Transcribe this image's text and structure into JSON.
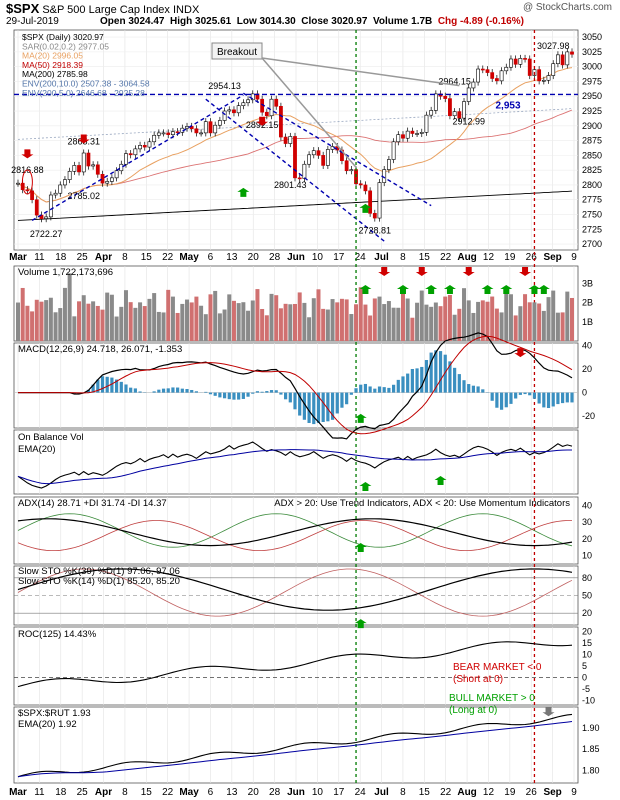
{
  "header": {
    "symbol": "$SPX",
    "name": "S&P 500 Large Cap Index",
    "exchange": "INDX",
    "date": "29-Jul-2019",
    "open": "Open 3024.47",
    "high": "High 3025.61",
    "low": "Low 3014.30",
    "close": "Close 3020.97",
    "volume": "Volume 1.7B",
    "chg": "Chg -4.89 (-0.16%)",
    "watermark": "@ StockCharts.com"
  },
  "colors": {
    "up": "#00a000",
    "down": "#d00000",
    "ma20": "#e8a060",
    "ma50": "#c00000",
    "ma200": "#000000",
    "trend": "#0000b0",
    "vline_green": "#007a00",
    "vline_red": "#c00000",
    "vol_up": "#8a8a8a",
    "vol_down": "#d07070",
    "macd_hist": "#3a8fc0",
    "ema": "#0000a0"
  },
  "x_ticks": [
    "Mar",
    "11",
    "18",
    "25",
    "Apr",
    "8",
    "15",
    "22",
    "May",
    "6",
    "13",
    "20",
    "28",
    "Jun",
    "10",
    "17",
    "24",
    "Jul",
    "8",
    "15",
    "22",
    "Aug",
    "12",
    "19",
    "26",
    "Sep",
    "9"
  ],
  "chart_data": [
    {
      "type": "candlestick",
      "panel": "price",
      "title": "$SPX (Daily) 3020.97",
      "legend": [
        "$SPX (Daily) 3020.97",
        "SAR(0.02,0.2) 2977.05",
        "MA(20) 2996.05",
        "MA(50) 2918.39",
        "MA(200) 2785.98",
        "ENV(200,10.0) 2507.38 - 3064.58",
        "ENV(200,5.0) 2646.68 - 2925.28"
      ],
      "y_ticks": [
        2700,
        2725,
        2750,
        2775,
        2800,
        2825,
        2850,
        2875,
        2900,
        2925,
        2950,
        2975,
        3000,
        3025,
        3050
      ],
      "ylim": [
        2690,
        3062
      ],
      "close": [
        2803,
        2792,
        2790,
        2775,
        2749,
        2743,
        2746,
        2783,
        2786,
        2800,
        2809,
        2823,
        2833,
        2822,
        2854,
        2832,
        2834,
        2818,
        2803,
        2806,
        2812,
        2824,
        2835,
        2853,
        2851,
        2861,
        2867,
        2864,
        2873,
        2884,
        2888,
        2888,
        2885,
        2890,
        2889,
        2896,
        2899,
        2895,
        2888,
        2888,
        2907,
        2888,
        2901,
        2909,
        2925,
        2927,
        2922,
        2934,
        2939,
        2944,
        2954,
        2945,
        2923,
        2917,
        2945,
        2933,
        2881,
        2870,
        2882,
        2812,
        2811,
        2835,
        2851,
        2858,
        2850,
        2833,
        2860,
        2865,
        2859,
        2841,
        2824,
        2826,
        2802,
        2800,
        2790,
        2752,
        2744,
        2804,
        2826,
        2843,
        2873,
        2885,
        2879,
        2891,
        2887,
        2887,
        2889,
        2918,
        2926,
        2954,
        2950,
        2946,
        2917,
        2924,
        2913,
        2941,
        2964,
        2974,
        2996,
        2995,
        2990,
        2980,
        2976,
        2993,
        2999,
        3013,
        3004,
        3014,
        3013,
        2985,
        2995,
        2976,
        2977,
        2985,
        3005,
        3020,
        3003,
        3025,
        3021
      ],
      "vline_green_index": 72,
      "vline_red_index": 110,
      "horizontal_level": 2953,
      "horizontal_label": "2,953",
      "labels": [
        "2816.88",
        "2865.31",
        "2785.02",
        "2722.27",
        "2954.13",
        "2892.15",
        "2801.43",
        "2728.81",
        "2964.15",
        "2912.99",
        "3027.98"
      ],
      "annotation": "Breakout"
    },
    {
      "type": "bar",
      "panel": "volume",
      "title": "Volume 1,722,173,696",
      "y_ticks": [
        "1B",
        "2B",
        "3B"
      ],
      "ylim": [
        0,
        3.9
      ]
    },
    {
      "type": "line",
      "panel": "macd",
      "title": "MACD(12,26,9) 24.718, 26.071, -1.353",
      "y_ticks": [
        -20,
        0,
        20,
        40
      ],
      "ylim": [
        -30,
        42
      ]
    },
    {
      "type": "line",
      "panel": "obv",
      "title": "On Balance Vol",
      "series": [
        "EMA(20)"
      ]
    },
    {
      "type": "line",
      "panel": "adx",
      "title": "ADX(14) 28.71 +DI 31.74 -DI 14.37",
      "note": "ADX > 20: Use Trend Indicators, ADX < 20: Use Momentum Indicators",
      "y_ticks": [
        10,
        20,
        30,
        40
      ],
      "ylim": [
        5,
        45
      ]
    },
    {
      "type": "line",
      "panel": "stoch",
      "title": "Slow STO %K(39) %D(1) 97.06, 97.06",
      "title2": "Slow STO %K(14) %D(1) 85.20, 85.20",
      "y_ticks": [
        20,
        50,
        80
      ],
      "ylim": [
        0,
        100
      ]
    },
    {
      "type": "line",
      "panel": "roc",
      "title": "ROC(125) 14.43%",
      "y_ticks": [
        -10,
        -5,
        0,
        5,
        10,
        15,
        20
      ],
      "ylim": [
        -12,
        22
      ],
      "notes": [
        "BEAR MARKET < 0",
        "(Short at 0)",
        "BULL MARKET > 0",
        "(Long at 0)"
      ]
    },
    {
      "type": "line",
      "panel": "ratio",
      "title": "$SPX:$RUT 1.93",
      "series": [
        "EMA(20) 1.92"
      ],
      "y_ticks": [
        1.8,
        1.85,
        1.9
      ],
      "ylim": [
        1.77,
        1.95
      ]
    }
  ]
}
